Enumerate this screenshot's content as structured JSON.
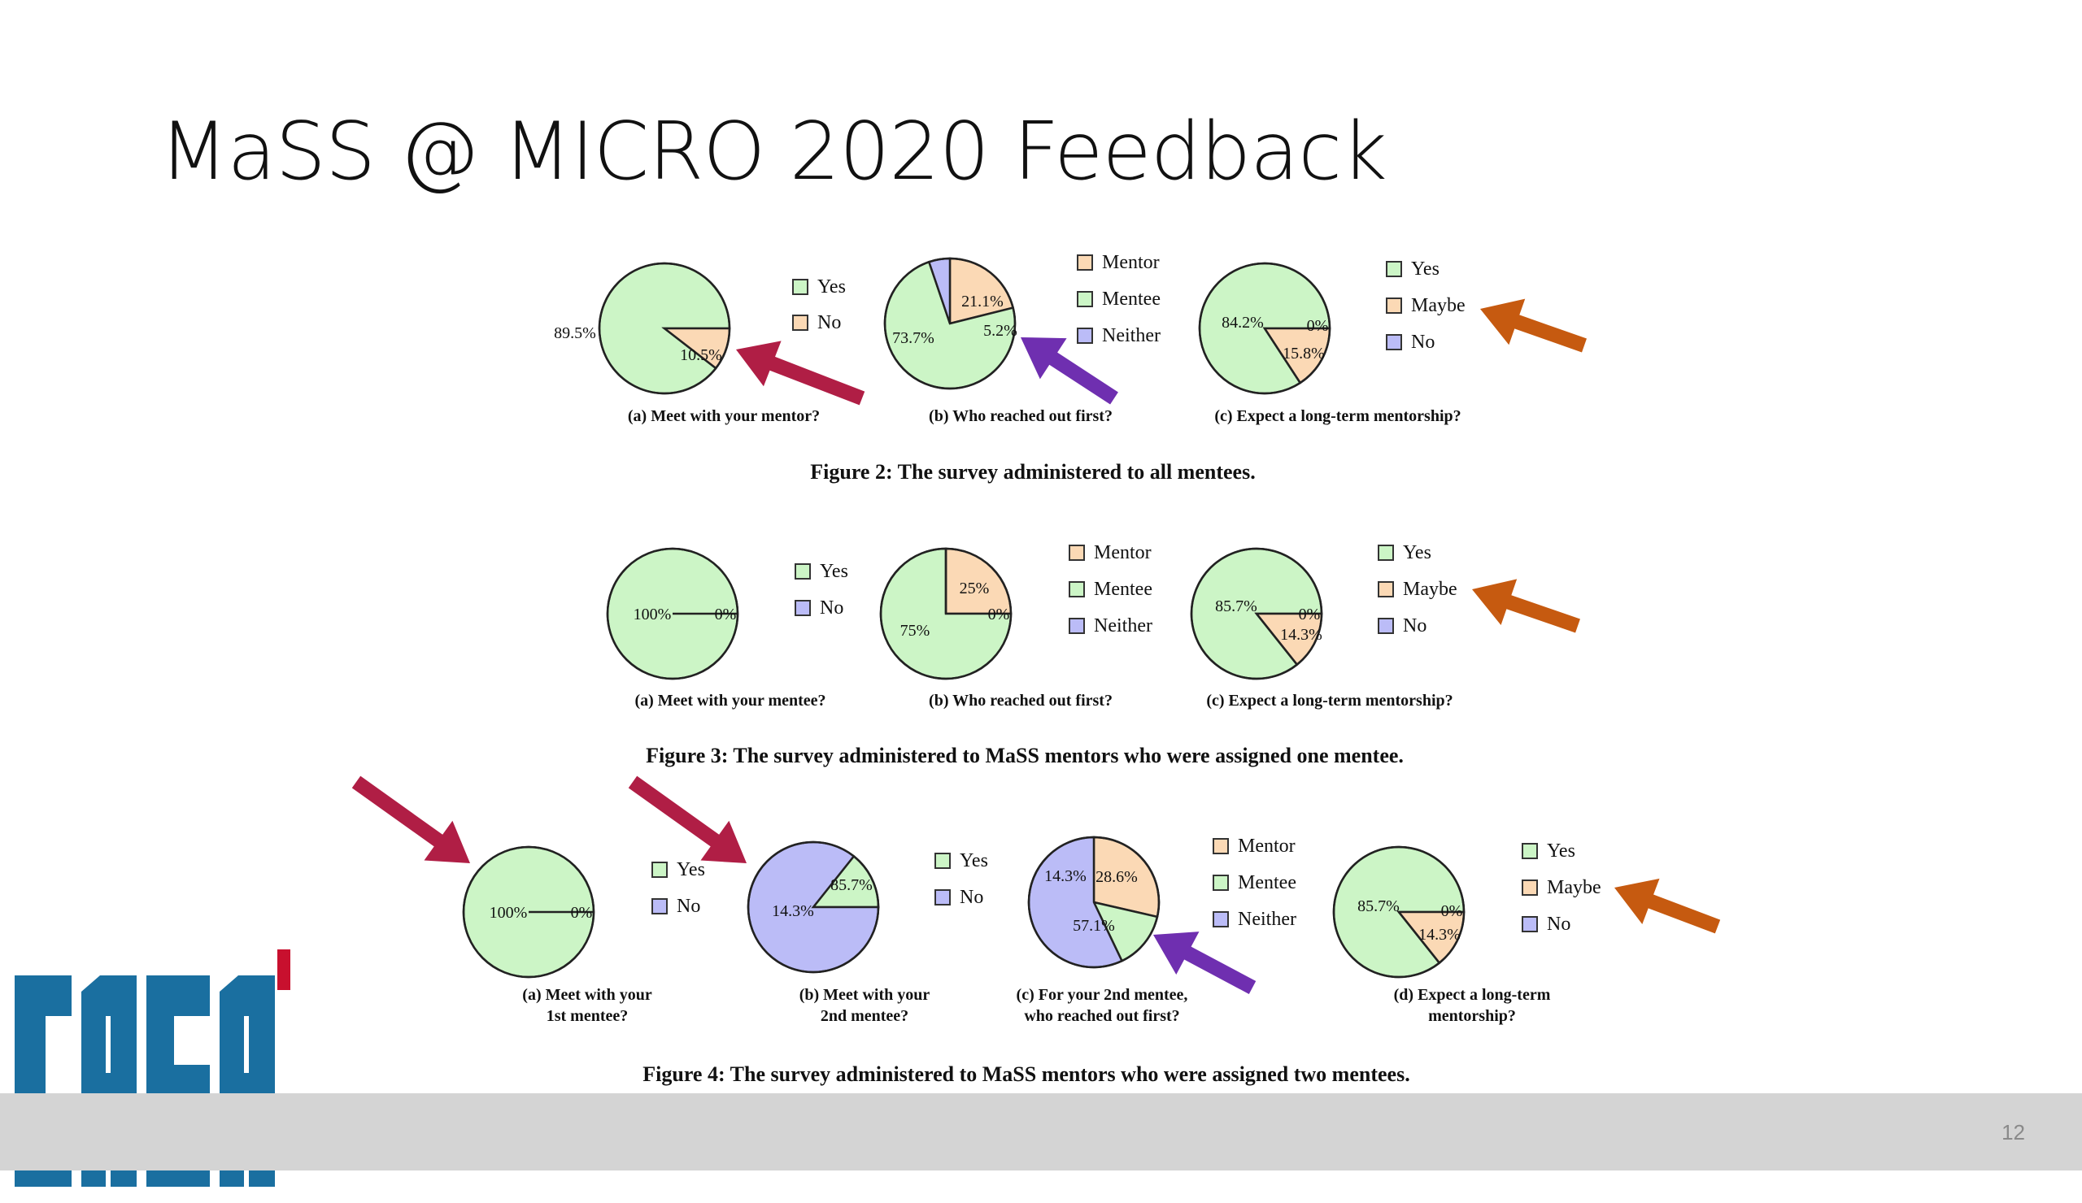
{
  "slide": {
    "title": "MaSS @ MICRO 2020 Feedback",
    "page_number": "12",
    "logo_text": "CASA"
  },
  "colors": {
    "green": "#ccf5c6",
    "orange": "#fbd9b5",
    "purple": "#bbbcf7",
    "arrow_crimson": "#b01e45",
    "arrow_purple": "#6f2fb0",
    "arrow_orange": "#c65a10",
    "logo_blue": "#1a6fa0",
    "logo_red": "#c8102e"
  },
  "chart_data": [
    {
      "type": "pie",
      "caption": "(a) Meet with your mentor?",
      "figure": "Figure 2: The survey administered to all mentees.",
      "slices": [
        {
          "label": "Yes",
          "value": 89.5,
          "text": "89.5%",
          "color": "green"
        },
        {
          "label": "No",
          "value": 10.5,
          "text": "10.5%",
          "color": "orange"
        }
      ],
      "legend": [
        "Yes",
        "No"
      ]
    },
    {
      "type": "pie",
      "caption": "(b) Who reached out first?",
      "figure": "Figure 2: The survey administered to all mentees.",
      "slices": [
        {
          "label": "Mentor",
          "value": 21.1,
          "text": "21.1%",
          "color": "orange"
        },
        {
          "label": "Mentee",
          "value": 73.7,
          "text": "73.7%",
          "color": "green"
        },
        {
          "label": "Neither",
          "value": 5.2,
          "text": "5.2%",
          "color": "purple"
        }
      ],
      "legend": [
        "Mentor",
        "Mentee",
        "Neither"
      ]
    },
    {
      "type": "pie",
      "caption": "(c) Expect a long-term mentorship?",
      "figure": "Figure 2: The survey administered to all mentees.",
      "slices": [
        {
          "label": "Yes",
          "value": 84.2,
          "text": "84.2%",
          "color": "green"
        },
        {
          "label": "Maybe",
          "value": 15.8,
          "text": "15.8%",
          "color": "orange"
        },
        {
          "label": "No",
          "value": 0,
          "text": "0%",
          "color": "purple"
        }
      ],
      "legend": [
        "Yes",
        "Maybe",
        "No"
      ]
    },
    {
      "type": "pie",
      "caption": "(a) Meet with your mentee?",
      "figure": "Figure 3: The survey administered to MaSS mentors who were assigned one mentee.",
      "slices": [
        {
          "label": "Yes",
          "value": 100,
          "text": "100%",
          "color": "green"
        },
        {
          "label": "No",
          "value": 0,
          "text": "0%",
          "color": "purple"
        }
      ],
      "legend": [
        "Yes",
        "No"
      ]
    },
    {
      "type": "pie",
      "caption": "(b) Who reached out first?",
      "figure": "Figure 3: The survey administered to MaSS mentors who were assigned one mentee.",
      "slices": [
        {
          "label": "Mentor",
          "value": 25,
          "text": "25%",
          "color": "orange"
        },
        {
          "label": "Mentee",
          "value": 75,
          "text": "75%",
          "color": "green"
        },
        {
          "label": "Neither",
          "value": 0,
          "text": "0%",
          "color": "purple"
        }
      ],
      "legend": [
        "Mentor",
        "Mentee",
        "Neither"
      ]
    },
    {
      "type": "pie",
      "caption": "(c) Expect a long-term mentorship?",
      "figure": "Figure 3: The survey administered to MaSS mentors who were assigned one mentee.",
      "slices": [
        {
          "label": "Yes",
          "value": 85.7,
          "text": "85.7%",
          "color": "green"
        },
        {
          "label": "Maybe",
          "value": 14.3,
          "text": "14.3%",
          "color": "orange"
        },
        {
          "label": "No",
          "value": 0,
          "text": "0%",
          "color": "purple"
        }
      ],
      "legend": [
        "Yes",
        "Maybe",
        "No"
      ]
    },
    {
      "type": "pie",
      "caption": "(a) Meet with your 1st mentee?",
      "figure": "Figure 4: The survey administered to MaSS mentors who were assigned two mentees.",
      "slices": [
        {
          "label": "Yes",
          "value": 100,
          "text": "100%",
          "color": "green"
        },
        {
          "label": "No",
          "value": 0,
          "text": "0%",
          "color": "purple"
        }
      ],
      "legend": [
        "Yes",
        "No"
      ]
    },
    {
      "type": "pie",
      "caption": "(b) Meet with your 2nd mentee?",
      "figure": "Figure 4: The survey administered to MaSS mentors who were assigned two mentees.",
      "slices": [
        {
          "label": "Yes",
          "value": 14.3,
          "text": "14.3%",
          "color": "green"
        },
        {
          "label": "No",
          "value": 85.7,
          "text": "85.7%",
          "color": "purple"
        }
      ],
      "legend": [
        "Yes",
        "No"
      ]
    },
    {
      "type": "pie",
      "caption": "(c) For your 2nd mentee, who reached out first?",
      "figure": "Figure 4: The survey administered to MaSS mentors who were assigned two mentees.",
      "slices": [
        {
          "label": "Mentor",
          "value": 28.6,
          "text": "28.6%",
          "color": "orange"
        },
        {
          "label": "Mentee",
          "value": 14.3,
          "text": "14.3%",
          "color": "green"
        },
        {
          "label": "Neither",
          "value": 57.1,
          "text": "57.1%",
          "color": "purple"
        }
      ],
      "legend": [
        "Mentor",
        "Mentee",
        "Neither"
      ]
    },
    {
      "type": "pie",
      "caption": "(d) Expect a long-term mentorship?",
      "figure": "Figure 4: The survey administered to MaSS mentors who were assigned two mentees.",
      "slices": [
        {
          "label": "Yes",
          "value": 85.7,
          "text": "85.7%",
          "color": "green"
        },
        {
          "label": "Maybe",
          "value": 14.3,
          "text": "14.3%",
          "color": "orange"
        },
        {
          "label": "No",
          "value": 0,
          "text": "0%",
          "color": "purple"
        }
      ],
      "legend": [
        "Yes",
        "Maybe",
        "No"
      ]
    }
  ],
  "figure_captions": [
    "Figure 2: The survey administered to all mentees.",
    "Figure 3: The survey administered to MaSS mentors who were assigned one mentee.",
    "Figure 4: The survey administered to MaSS mentors who were assigned two mentees."
  ]
}
